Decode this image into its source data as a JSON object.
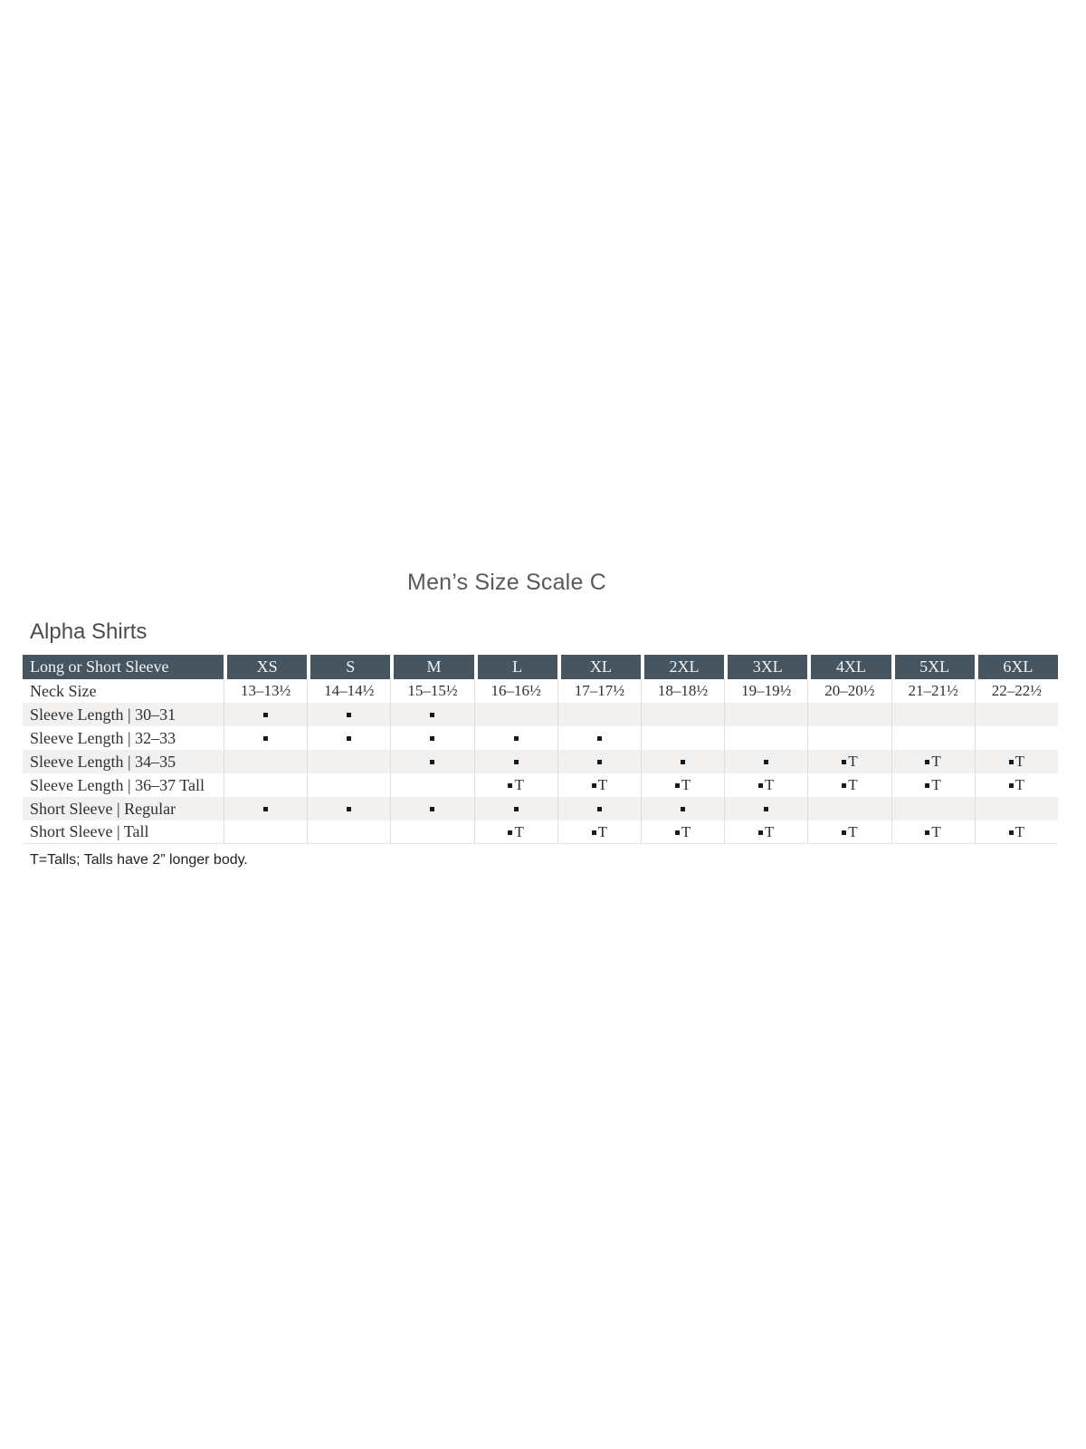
{
  "page": {
    "title": "Men’s Size Scale C",
    "section_title": "Alpha Shirts",
    "footnote": "T=Talls; Talls have 2” longer body."
  },
  "colors": {
    "header_bg": "#475561",
    "header_text": "#f2f4f5",
    "shaded_row": "#f2f1ef",
    "body_text": "#2f2f30",
    "marker": "#1a1a1a"
  },
  "table": {
    "columns": [
      "Long or Short Sleeve",
      "XS",
      "S",
      "M",
      "L",
      "XL",
      "2XL",
      "3XL",
      "4XL",
      "5XL",
      "6XL"
    ],
    "rows": [
      {
        "label": "Neck Size",
        "shaded": false,
        "cells": [
          "13–13½",
          "14–14½",
          "15–15½",
          "16–16½",
          "17–17½",
          "18–18½",
          "19–19½",
          "20–20½",
          "21–21½",
          "22–22½"
        ]
      },
      {
        "label": "Sleeve Length | 30–31",
        "shaded": true,
        "cells": [
          "▪",
          "▪",
          "▪",
          "",
          "",
          "",
          "",
          "",
          "",
          ""
        ]
      },
      {
        "label": "Sleeve Length | 32–33",
        "shaded": false,
        "cells": [
          "▪",
          "▪",
          "▪",
          "▪",
          "▪",
          "",
          "",
          "",
          "",
          ""
        ]
      },
      {
        "label": "Sleeve Length | 34–35",
        "shaded": true,
        "cells": [
          "",
          "",
          "▪",
          "▪",
          "▪",
          "▪",
          "▪",
          "▪T",
          "▪T",
          "▪T"
        ]
      },
      {
        "label": "Sleeve Length | 36–37 Tall",
        "shaded": false,
        "cells": [
          "",
          "",
          "",
          "▪T",
          "▪T",
          "▪T",
          "▪T",
          "▪T",
          "▪T",
          "▪T"
        ]
      },
      {
        "label": "Short Sleeve | Regular",
        "shaded": true,
        "cells": [
          "▪",
          "▪",
          "▪",
          "▪",
          "▪",
          "▪",
          "▪",
          "",
          "",
          ""
        ]
      },
      {
        "label": "Short Sleeve | Tall",
        "shaded": false,
        "cells": [
          "",
          "",
          "",
          "▪T",
          "▪T",
          "▪T",
          "▪T",
          "▪T",
          "▪T",
          "▪T"
        ]
      }
    ]
  }
}
